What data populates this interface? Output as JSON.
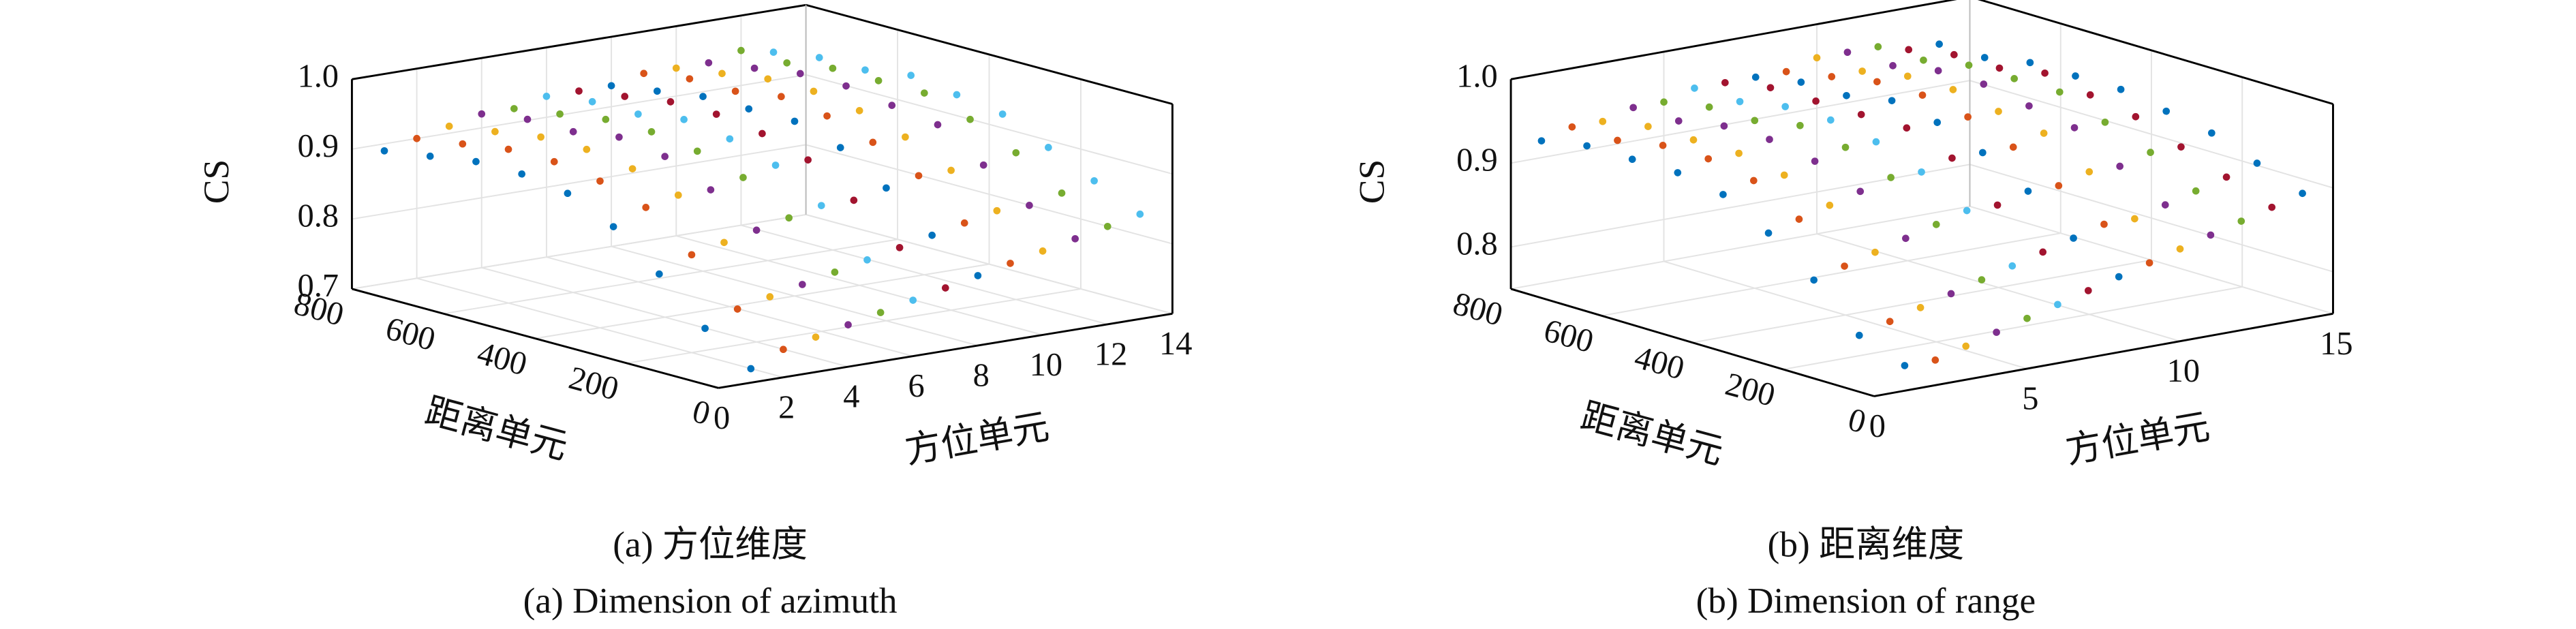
{
  "chart_data": [
    {
      "type": "scatter3d",
      "caption_cn": "(a) 方位维度",
      "caption_en": "(a) Dimension of azimuth",
      "zlabel": "CS",
      "ylabel": "距离单元",
      "xlabel": "方位单元",
      "xlim": [
        0,
        14
      ],
      "xticks": [
        0,
        2,
        4,
        6,
        8,
        10,
        12,
        14
      ],
      "ylim": [
        0,
        800
      ],
      "yticks": [
        0,
        200,
        400,
        600,
        800
      ],
      "zlim": [
        0.7,
        1.0
      ],
      "zticks": [
        0.7,
        0.8,
        0.9,
        {
          "value": 1,
          "label": "1.0"
        }
      ],
      "y": [
        0,
        100,
        200,
        300,
        400,
        500,
        600,
        700,
        800
      ],
      "series": [
        {
          "x": 1,
          "color": "#0072BD",
          "values": [
            0.72,
            0.76,
            0.82,
            0.87,
            0.9,
            0.91,
            0.91,
            0.9,
            0.89
          ]
        },
        {
          "x": 2,
          "color": "#D95319",
          "values": [
            0.74,
            0.78,
            0.84,
            0.89,
            0.91,
            0.92,
            0.92,
            0.91,
            0.9
          ]
        },
        {
          "x": 3,
          "color": "#EDB120",
          "values": [
            0.75,
            0.79,
            0.85,
            0.9,
            0.92,
            0.93,
            0.93,
            0.92,
            0.91
          ]
        },
        {
          "x": 4,
          "color": "#7E2F8E",
          "values": [
            0.76,
            0.8,
            0.86,
            0.9,
            0.93,
            0.94,
            0.93,
            0.93,
            0.92
          ]
        },
        {
          "x": 5,
          "color": "#77AC30",
          "values": [
            0.77,
            0.81,
            0.87,
            0.91,
            0.93,
            0.94,
            0.94,
            0.93,
            0.92
          ]
        },
        {
          "x": 6,
          "color": "#4DBEEE",
          "values": [
            0.78,
            0.82,
            0.88,
            0.92,
            0.94,
            0.95,
            0.94,
            0.94,
            0.93
          ]
        },
        {
          "x": 7,
          "color": "#A2142F",
          "values": [
            0.79,
            0.83,
            0.88,
            0.92,
            0.94,
            0.95,
            0.95,
            0.94,
            0.93
          ]
        },
        {
          "x": 8,
          "color": "#0072BD",
          "values": [
            0.8,
            0.84,
            0.89,
            0.93,
            0.95,
            0.95,
            0.95,
            0.94,
            0.93
          ]
        },
        {
          "x": 9,
          "color": "#D95319",
          "values": [
            0.81,
            0.85,
            0.9,
            0.93,
            0.95,
            0.96,
            0.95,
            0.95,
            0.94
          ]
        },
        {
          "x": 10,
          "color": "#EDB120",
          "values": [
            0.82,
            0.86,
            0.9,
            0.93,
            0.95,
            0.96,
            0.96,
            0.95,
            0.94
          ]
        },
        {
          "x": 11,
          "color": "#7E2F8E",
          "values": [
            0.83,
            0.86,
            0.9,
            0.94,
            0.95,
            0.96,
            0.96,
            0.95,
            0.94
          ]
        },
        {
          "x": 12,
          "color": "#77AC30",
          "values": [
            0.84,
            0.87,
            0.91,
            0.94,
            0.96,
            0.96,
            0.96,
            0.95,
            0.95
          ]
        },
        {
          "x": 13,
          "color": "#4DBEEE",
          "values": [
            0.85,
            0.88,
            0.91,
            0.94,
            0.95,
            0.96,
            0.95,
            0.95,
            0.94
          ]
        }
      ]
    },
    {
      "type": "scatter3d",
      "caption_cn": "(b) 距离维度",
      "caption_en": "(b) Dimension of range",
      "zlabel": "CS",
      "ylabel": "距离单元",
      "xlabel": "方位单元",
      "xlim": [
        0,
        15
      ],
      "xticks": [
        0,
        5,
        10,
        15
      ],
      "ylim": [
        0,
        800
      ],
      "yticks": [
        0,
        200,
        400,
        600,
        800
      ],
      "zlim": [
        0.75,
        1.0
      ],
      "zticks": [
        0.8,
        0.9,
        {
          "value": 1,
          "label": "1.0"
        }
      ],
      "y": [
        0,
        100,
        200,
        300,
        400,
        500,
        600,
        700,
        800
      ],
      "series": [
        {
          "x": 1,
          "color": "#0072BD",
          "values": [
            0.78,
            0.8,
            0.85,
            0.89,
            0.92,
            0.93,
            0.93,
            0.93,
            0.92
          ]
        },
        {
          "x": 2,
          "color": "#D95319",
          "values": [
            0.78,
            0.81,
            0.86,
            0.9,
            0.93,
            0.94,
            0.94,
            0.93,
            0.93
          ]
        },
        {
          "x": 3,
          "color": "#EDB120",
          "values": [
            0.79,
            0.82,
            0.87,
            0.91,
            0.93,
            0.94,
            0.94,
            0.94,
            0.93
          ]
        },
        {
          "x": 4,
          "color": "#7E2F8E",
          "values": [
            0.8,
            0.83,
            0.88,
            0.92,
            0.94,
            0.95,
            0.95,
            0.94,
            0.94
          ]
        },
        {
          "x": 5,
          "color": "#77AC30",
          "values": [
            0.81,
            0.84,
            0.89,
            0.93,
            0.95,
            0.96,
            0.95,
            0.95,
            0.94
          ]
        },
        {
          "x": 6,
          "color": "#4DBEEE",
          "values": [
            0.82,
            0.85,
            0.9,
            0.93,
            0.95,
            0.96,
            0.96,
            0.95,
            0.95
          ]
        },
        {
          "x": 7,
          "color": "#A2142F",
          "values": [
            0.83,
            0.86,
            0.9,
            0.94,
            0.96,
            0.96,
            0.96,
            0.96,
            0.95
          ]
        },
        {
          "x": 8,
          "color": "#0072BD",
          "values": [
            0.84,
            0.87,
            0.91,
            0.94,
            0.96,
            0.97,
            0.96,
            0.96,
            0.95
          ]
        },
        {
          "x": 9,
          "color": "#D95319",
          "values": [
            0.85,
            0.88,
            0.91,
            0.94,
            0.96,
            0.97,
            0.97,
            0.96,
            0.95
          ]
        },
        {
          "x": 10,
          "color": "#EDB120",
          "values": [
            0.86,
            0.88,
            0.92,
            0.95,
            0.96,
            0.97,
            0.97,
            0.96,
            0.96
          ]
        },
        {
          "x": 11,
          "color": "#7E2F8E",
          "values": [
            0.87,
            0.89,
            0.92,
            0.95,
            0.96,
            0.97,
            0.97,
            0.96,
            0.96
          ]
        },
        {
          "x": 12,
          "color": "#77AC30",
          "values": [
            0.88,
            0.9,
            0.93,
            0.95,
            0.97,
            0.97,
            0.97,
            0.96,
            0.96
          ]
        },
        {
          "x": 13,
          "color": "#A2142F",
          "values": [
            0.89,
            0.91,
            0.93,
            0.95,
            0.96,
            0.97,
            0.96,
            0.96,
            0.95
          ]
        },
        {
          "x": 14,
          "color": "#0072BD",
          "values": [
            0.9,
            0.92,
            0.94,
            0.95,
            0.96,
            0.96,
            0.96,
            0.95,
            0.95
          ]
        }
      ]
    }
  ]
}
